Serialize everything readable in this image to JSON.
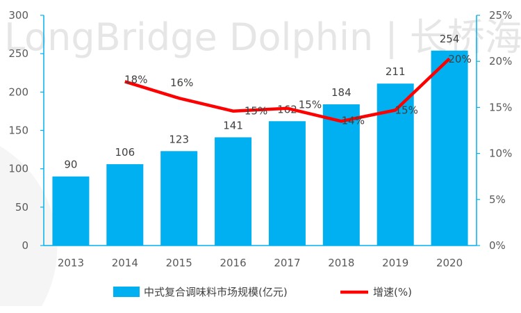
{
  "watermark": "LongBridge Dolphin | 长桥海豚投研",
  "chart_data": {
    "type": "bar",
    "categories": [
      "2013",
      "2014",
      "2015",
      "2016",
      "2017",
      "2018",
      "2019",
      "2020"
    ],
    "title": "",
    "xlabel": "",
    "ylabel": "",
    "ylim": [
      0,
      300
    ],
    "yticks": [
      "0",
      "50",
      "100",
      "150",
      "200",
      "250",
      "300"
    ],
    "y2lim": [
      0,
      25
    ],
    "y2ticks": [
      "0%",
      "5%",
      "10%",
      "15%",
      "20%",
      "25%"
    ],
    "grid": false,
    "legend_position": "bottom",
    "series": [
      {
        "name": "中式复合调味料市场规模(亿元)",
        "type": "bar",
        "axis": "left",
        "color": "#00b0f0",
        "values": [
          90,
          106,
          123,
          141,
          162,
          184,
          211,
          254
        ],
        "labels": [
          "90",
          "106",
          "123",
          "141",
          "162",
          "184",
          "211",
          "254"
        ]
      },
      {
        "name": "增速(%)",
        "type": "line",
        "axis": "right",
        "color": "#ff0000",
        "values": [
          null,
          17.8,
          16.0,
          14.6,
          14.9,
          13.5,
          14.7,
          20.3
        ],
        "labels": [
          "",
          "18%",
          "16%",
          "15%",
          "15%",
          "14%",
          "15%",
          "20%"
        ]
      }
    ]
  }
}
